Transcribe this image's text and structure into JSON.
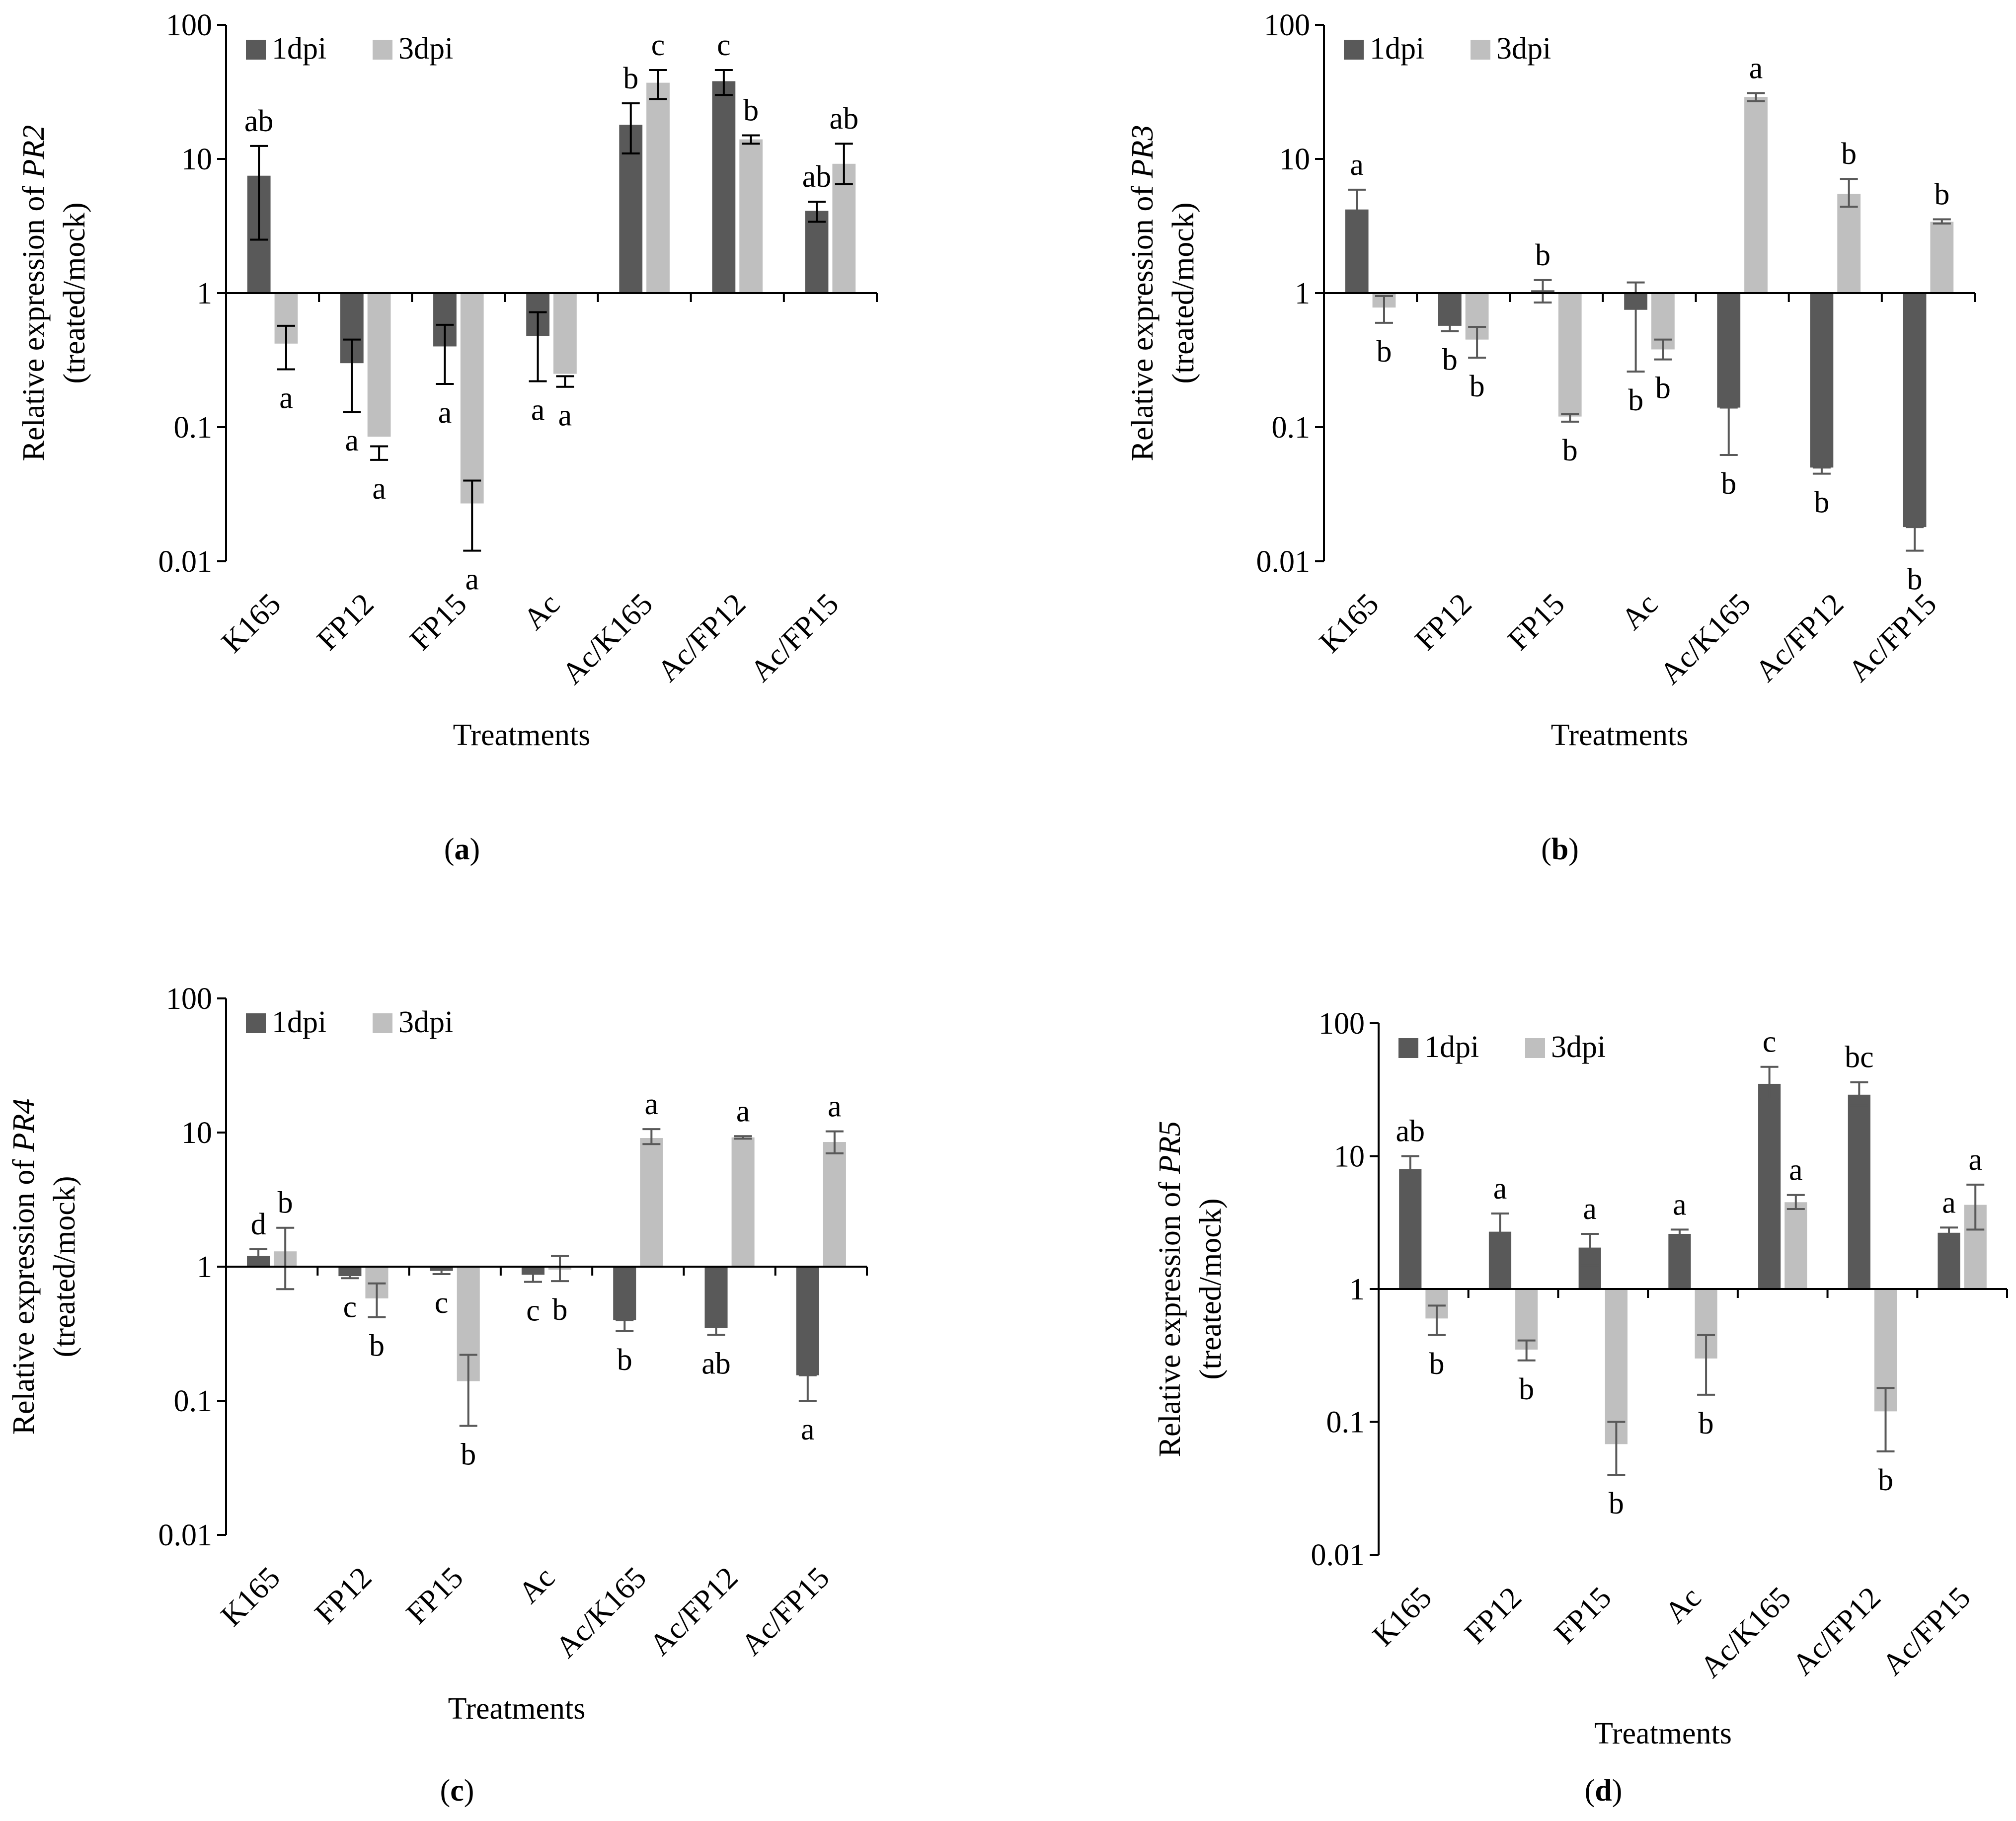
{
  "series_colors": {
    "1dpi": "#595959",
    "3dpi": "#bfbfbf"
  },
  "chart_data": [
    {
      "type": "bar",
      "panel": "(a)",
      "panel_letter": "a",
      "gene": "PR2",
      "ylabel_prefix": "Relative expression of ",
      "ylabel_line2": "(treated/mock)",
      "xlabel": "Treatments",
      "yscale": "log",
      "ylim": [
        0.01,
        100
      ],
      "yticks": [
        "0.01",
        "0.1",
        "1",
        "10",
        "100"
      ],
      "categories": [
        "K165",
        "FP12",
        "FP15",
        "Ac",
        "Ac/K165",
        "Ac/FP12",
        "Ac/FP15"
      ],
      "series": [
        {
          "name": "1dpi",
          "values": [
            7.5,
            0.3,
            0.4,
            0.48,
            18,
            38,
            4.1
          ],
          "err_low": [
            2.5,
            0.13,
            0.21,
            0.22,
            11,
            30,
            3.4
          ],
          "err_high": [
            12.5,
            0.45,
            0.58,
            0.72,
            26,
            46,
            4.8
          ],
          "labels": [
            "ab",
            "a",
            "a",
            "a",
            "b",
            "c",
            "ab"
          ]
        },
        {
          "name": "3dpi",
          "values": [
            0.42,
            0.085,
            0.027,
            0.25,
            37,
            14,
            9.2
          ],
          "err_low": [
            0.27,
            0.057,
            0.012,
            0.2,
            28,
            13,
            6.5
          ],
          "err_high": [
            0.57,
            0.072,
            0.04,
            0.24,
            46,
            15,
            13
          ],
          "labels": [
            "a",
            "a",
            "a",
            "a",
            "c",
            "b",
            "ab"
          ]
        }
      ]
    },
    {
      "type": "bar",
      "panel": "(b)",
      "panel_letter": "b",
      "gene": "PR3",
      "ylabel_prefix": "Relative expression of ",
      "ylabel_line2": "(treated/mock)",
      "xlabel": "Treatments",
      "yscale": "log",
      "ylim": [
        0.01,
        100
      ],
      "yticks": [
        "0.01",
        "0.1",
        "1",
        "10",
        "100"
      ],
      "categories": [
        "K165",
        "FP12",
        "FP15",
        "Ac",
        "Ac/K165",
        "Ac/FP12",
        "Ac/FP15"
      ],
      "series": [
        {
          "name": "1dpi",
          "values": [
            4.2,
            0.57,
            1.05,
            0.75,
            0.14,
            0.05,
            0.018
          ],
          "err_low": [
            2.6,
            0.52,
            0.85,
            0.26,
            0.062,
            0.045,
            0.012
          ],
          "err_high": [
            5.9,
            0.62,
            1.25,
            1.2,
            0.14,
            0.05,
            0.018
          ],
          "labels": [
            "a",
            "b",
            "b",
            "b",
            "b",
            "b",
            "b"
          ]
        },
        {
          "name": "3dpi",
          "values": [
            0.78,
            0.45,
            0.12,
            0.38,
            29,
            5.5,
            3.4
          ],
          "err_low": [
            0.6,
            0.33,
            0.11,
            0.32,
            27,
            4.4,
            3.3
          ],
          "err_high": [
            0.95,
            0.56,
            0.125,
            0.45,
            31,
            7.1,
            3.55
          ],
          "labels": [
            "b",
            "b",
            "b",
            "b",
            "a",
            "b",
            "b"
          ]
        }
      ]
    },
    {
      "type": "bar",
      "panel": "(c)",
      "panel_letter": "c",
      "gene": "PR4",
      "ylabel_prefix": "Relative expression of ",
      "ylabel_line2": "(treated/mock)",
      "xlabel": "Treatments",
      "yscale": "log",
      "ylim": [
        0.01,
        100
      ],
      "yticks": [
        "0.01",
        "0.1",
        "1",
        "10",
        "100"
      ],
      "categories": [
        "K165",
        "FP12",
        "FP15",
        "Ac",
        "Ac/K165",
        "Ac/FP12",
        "Ac/FP15"
      ],
      "series": [
        {
          "name": "1dpi",
          "values": [
            1.2,
            0.85,
            0.93,
            0.87,
            0.4,
            0.35,
            0.155
          ],
          "err_low": [
            1.1,
            0.82,
            0.88,
            0.77,
            0.33,
            0.31,
            0.1
          ],
          "err_high": [
            1.35,
            0.88,
            0.98,
            0.97,
            0.4,
            0.37,
            0.155
          ],
          "labels": [
            "d",
            "c",
            "c",
            "c",
            "b",
            "ab",
            "a"
          ]
        },
        {
          "name": "3dpi",
          "values": [
            1.3,
            0.58,
            0.14,
            0.95,
            9.1,
            9.2,
            8.5
          ],
          "err_low": [
            0.68,
            0.42,
            0.065,
            0.78,
            8.2,
            9.0,
            7.0
          ],
          "err_high": [
            1.95,
            0.75,
            0.22,
            1.2,
            10.6,
            9.4,
            10.2
          ],
          "labels": [
            "b",
            "b",
            "b",
            "b",
            "a",
            "a",
            "a"
          ]
        }
      ]
    },
    {
      "type": "bar",
      "panel": "(d)",
      "panel_letter": "d",
      "gene": "PR5",
      "ylabel_prefix": "Relative expression of ",
      "ylabel_line2": "(treated/mock)",
      "xlabel": "Treatments",
      "yscale": "log",
      "ylim": [
        0.01,
        100
      ],
      "yticks": [
        "0.01",
        "0.1",
        "1",
        "10",
        "100"
      ],
      "categories": [
        "K165",
        "FP12",
        "FP15",
        "Ac",
        "Ac/K165",
        "Ac/FP12",
        "Ac/FP15"
      ],
      "series": [
        {
          "name": "1dpi",
          "values": [
            8,
            2.7,
            2.05,
            2.6,
            35,
            29,
            2.65
          ],
          "err_low": [
            6.2,
            1.9,
            1.5,
            2.4,
            27,
            24,
            2.4
          ],
          "err_high": [
            10,
            3.7,
            2.6,
            2.8,
            47,
            36,
            2.9
          ],
          "labels": [
            "ab",
            "a",
            "a",
            "a",
            "c",
            "bc",
            "a"
          ]
        },
        {
          "name": "3dpi",
          "values": [
            0.6,
            0.35,
            0.068,
            0.3,
            4.5,
            0.12,
            4.3
          ],
          "err_low": [
            0.45,
            0.29,
            0.04,
            0.16,
            4.0,
            0.06,
            2.8
          ],
          "err_high": [
            0.75,
            0.41,
            0.1,
            0.45,
            5.1,
            0.18,
            6.1
          ],
          "labels": [
            "b",
            "b",
            "b",
            "b",
            "a",
            "b",
            "a"
          ]
        }
      ]
    }
  ]
}
